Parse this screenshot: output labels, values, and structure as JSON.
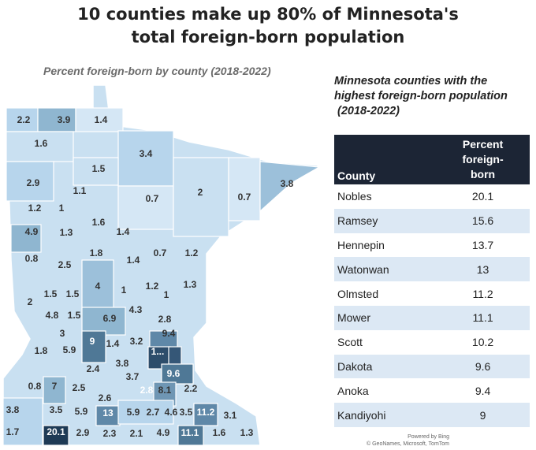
{
  "title_line1": "10 counties make up 80% of Minnesota's",
  "title_line2": "total foreign-born population",
  "map": {
    "subtitle": "Percent foreign-born by county (2018-2022)",
    "county_values": [
      "2.2",
      "3.9",
      "1.4",
      "1.6",
      "3.4",
      "1.5",
      "2.9",
      "1.1",
      "0.7",
      "2",
      "0.7",
      "3.8",
      "1.2",
      "1",
      "1.6",
      "4.9",
      "1.3",
      "1.4",
      "0.8",
      "2.5",
      "1.8",
      "1.4",
      "0.7",
      "1.2",
      "4",
      "1",
      "1.2",
      "1",
      "1.3",
      "2",
      "1.5",
      "1.5",
      "4.8",
      "1.5",
      "6.9",
      "4.3",
      "2.8",
      "3",
      "9.4",
      "1.8",
      "5.9",
      "9",
      "1.4",
      "3.2",
      "1...",
      "2.4",
      "3.8",
      "9.6",
      "3.7",
      "0.8",
      "7",
      "2.5",
      "2.8",
      "8.1",
      "2.2",
      "2.6",
      "3.8",
      "3.5",
      "5.9",
      "13",
      "5.9",
      "2.7",
      "4.6",
      "3.5",
      "11.2",
      "3.1",
      "1.7",
      "20.1",
      "2.9",
      "2.3",
      "2.1",
      "4.9",
      "11.1",
      "1.6",
      "1.3"
    ],
    "colors": {
      "lightest": "#d5e7f5",
      "light": "#b7d5ec",
      "mid": "#8fb6d0",
      "dark": "#4f7896",
      "darkest": "#1e3a55",
      "border": "#ffffff"
    },
    "credit_line1": "Powered by Bing",
    "credit_line2": "© GeoNames, Microsoft, TomTom"
  },
  "table": {
    "title_line1": "Minnesota counties with the",
    "title_line2": "highest foreign-born population",
    "title_line3": "(2018-2022)",
    "header_county": "County",
    "header_pct_1": "Percent",
    "header_pct_2": "foreign-",
    "header_pct_3": "born",
    "rows": [
      {
        "county": "Nobles",
        "value": "20.1"
      },
      {
        "county": "Ramsey",
        "value": "15.6"
      },
      {
        "county": "Hennepin",
        "value": "13.7"
      },
      {
        "county": "Watonwan",
        "value": "13"
      },
      {
        "county": "Olmsted",
        "value": "11.2"
      },
      {
        "county": "Mower",
        "value": "11.1"
      },
      {
        "county": "Scott",
        "value": "10.2"
      },
      {
        "county": "Dakota",
        "value": "9.6"
      },
      {
        "county": "Anoka",
        "value": "9.4"
      },
      {
        "county": "Kandiyohi",
        "value": "9"
      }
    ]
  }
}
